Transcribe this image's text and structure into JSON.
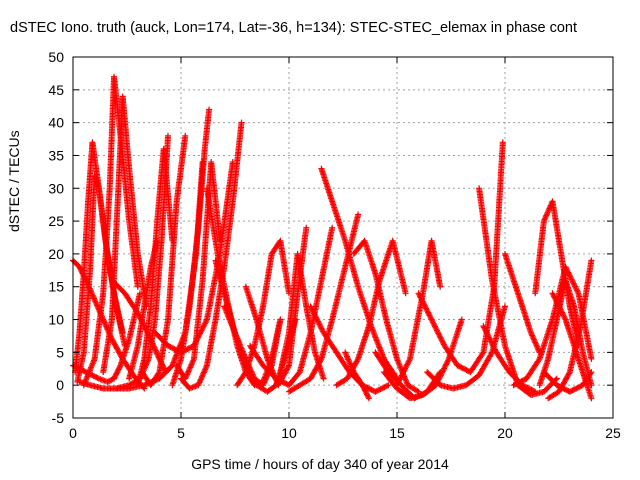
{
  "chart_data": {
    "type": "scatter",
    "title": "dSTEC Iono. truth (auck, Lon=174, Lat=-36, h=134): STEC-STEC_elemax in phase cont",
    "xlabel": "GPS time / hours of day 340 of year 2014",
    "ylabel": "dSTEC  / TECUs",
    "xlim": [
      0,
      25
    ],
    "ylim": [
      -5,
      50
    ],
    "xticks": [
      0,
      5,
      10,
      15,
      20,
      25
    ],
    "yticks": [
      -5,
      0,
      5,
      10,
      15,
      20,
      25,
      30,
      35,
      40,
      45,
      50
    ],
    "grid": true,
    "marker": "+",
    "color": "#ff0000",
    "passes": [
      {
        "x": [
          0.0,
          0.3,
          0.6,
          1.0,
          1.4,
          1.8,
          2.3,
          2.8,
          3.3
        ],
        "y": [
          19,
          18,
          16,
          13,
          10,
          7,
          4,
          1.5,
          -0.5
        ]
      },
      {
        "x": [
          0.1,
          0.3,
          0.5,
          0.7,
          0.9,
          1.2,
          1.6,
          2.0,
          2.4
        ],
        "y": [
          2,
          8,
          17,
          28,
          37,
          30,
          20,
          12,
          6
        ]
      },
      {
        "x": [
          0.2,
          0.5,
          0.8,
          1.0,
          1.2,
          1.5,
          1.9,
          2.3
        ],
        "y": [
          0.5,
          5,
          18,
          32,
          30,
          22,
          14,
          8
        ]
      },
      {
        "x": [
          0.0,
          0.6,
          1.2,
          1.6,
          1.9,
          2.2,
          2.6,
          3.1
        ],
        "y": [
          3,
          2,
          1,
          0.5,
          1,
          3,
          7,
          14
        ]
      },
      {
        "x": [
          0.5,
          1.0,
          1.4,
          1.7,
          1.9,
          2.2,
          2.6,
          3.0
        ],
        "y": [
          0,
          4,
          14,
          30,
          47,
          38,
          25,
          15
        ]
      },
      {
        "x": [
          1.4,
          1.8,
          2.1,
          2.3,
          2.6,
          3.0,
          3.4
        ],
        "y": [
          2,
          10,
          30,
          44,
          33,
          20,
          12
        ]
      },
      {
        "x": [
          0.3,
          0.8,
          1.4,
          2.0,
          2.6,
          3.1,
          3.5,
          3.8,
          4.1,
          4.4
        ],
        "y": [
          0.5,
          0,
          -0.5,
          -0.5,
          0,
          1,
          4,
          10,
          22,
          38
        ]
      },
      {
        "x": [
          2.6,
          3.0,
          3.3,
          3.6,
          3.9
        ],
        "y": [
          1,
          6,
          12,
          18,
          22
        ]
      },
      {
        "x": [
          3.0,
          3.3,
          3.6,
          3.9,
          4.2,
          4.6
        ],
        "y": [
          0,
          4,
          12,
          25,
          36,
          22
        ]
      },
      {
        "x": [
          3.2,
          3.6,
          4.0,
          4.4,
          4.8,
          5.2
        ],
        "y": [
          2,
          0,
          2,
          10,
          28,
          38
        ]
      },
      {
        "x": [
          1.8,
          2.4,
          3.0,
          3.6,
          4.0,
          4.3
        ],
        "y": [
          16,
          14,
          11,
          7,
          4,
          2
        ]
      },
      {
        "x": [
          2.0,
          2.6,
          3.3,
          4.0,
          4.6,
          5.2,
          5.7,
          6.0
        ],
        "y": [
          -0.5,
          -0.5,
          0,
          1,
          3,
          8,
          20,
          34
        ]
      },
      {
        "x": [
          4.6,
          5.0,
          5.4,
          5.8,
          6.1,
          6.3
        ],
        "y": [
          0,
          4,
          12,
          24,
          36,
          42
        ]
      },
      {
        "x": [
          4.8,
          5.2,
          5.6,
          6.0,
          6.4,
          6.8
        ],
        "y": [
          3,
          1,
          4,
          16,
          34,
          22
        ]
      },
      {
        "x": [
          5.0,
          5.4,
          5.8,
          6.2,
          6.6,
          7.0,
          7.4,
          7.8
        ],
        "y": [
          1,
          -0.5,
          0,
          3,
          10,
          18,
          28,
          40
        ]
      },
      {
        "x": [
          3.8,
          4.4,
          5.0,
          5.6,
          6.2,
          6.8,
          7.4
        ],
        "y": [
          8,
          6,
          5,
          6,
          10,
          20,
          34
        ]
      },
      {
        "x": [
          6.2,
          6.7,
          7.2,
          7.6,
          8.0,
          8.4,
          8.8,
          9.2,
          9.6
        ],
        "y": [
          30,
          20,
          12,
          6,
          2,
          0,
          0.5,
          4,
          10
        ]
      },
      {
        "x": [
          6.6,
          7.0,
          7.5,
          8.0,
          8.5,
          9.0,
          9.4,
          9.8,
          10.3
        ],
        "y": [
          19,
          14,
          8,
          3,
          0,
          -1,
          0,
          4,
          10
        ]
      },
      {
        "x": [
          7.0,
          7.5,
          8.0,
          8.4,
          8.8,
          9.2,
          9.6
        ],
        "y": [
          12,
          8,
          4,
          1,
          0,
          3,
          10
        ]
      },
      {
        "x": [
          7.6,
          8.0,
          8.4,
          8.8,
          9.2,
          9.6,
          10.0
        ],
        "y": [
          0,
          2,
          6,
          12,
          20,
          22,
          14
        ]
      },
      {
        "x": [
          8.0,
          8.5,
          9.0,
          9.5,
          10.0,
          10.4,
          10.8
        ],
        "y": [
          15,
          10,
          4,
          0,
          3,
          14,
          24
        ]
      },
      {
        "x": [
          8.2,
          8.8,
          9.4,
          10.0,
          10.5,
          11.0,
          11.5,
          12.0
        ],
        "y": [
          6,
          3,
          1,
          0,
          2,
          8,
          16,
          24
        ]
      },
      {
        "x": [
          9.6,
          10.0,
          10.4,
          10.8,
          11.2,
          11.6
        ],
        "y": [
          2,
          8,
          20,
          12,
          5,
          1
        ]
      },
      {
        "x": [
          10.0,
          10.5,
          11.0,
          11.5,
          12.0,
          12.6,
          13.2
        ],
        "y": [
          -1,
          0,
          1,
          4,
          10,
          18,
          26
        ]
      },
      {
        "x": [
          11.5,
          12.0,
          12.6,
          13.2,
          13.8,
          14.4,
          15.0
        ],
        "y": [
          33,
          28,
          22,
          15,
          9,
          4,
          1
        ]
      },
      {
        "x": [
          11.0,
          11.6,
          12.2,
          12.8,
          13.4,
          14.0,
          14.6
        ],
        "y": [
          12,
          8,
          5,
          2,
          0,
          -1,
          0
        ]
      },
      {
        "x": [
          12.2,
          12.7,
          13.2,
          13.7,
          14.2,
          14.8,
          15.4
        ],
        "y": [
          0,
          1,
          4,
          9,
          16,
          22,
          14
        ]
      },
      {
        "x": [
          13.0,
          13.5,
          14.0,
          14.5,
          15.0,
          15.5,
          16.0
        ],
        "y": [
          20,
          22,
          17,
          10,
          4,
          0,
          -1
        ]
      },
      {
        "x": [
          12.6,
          13.0,
          13.4,
          13.7
        ],
        "y": [
          5,
          2,
          0,
          -2
        ]
      },
      {
        "x": [
          14.0,
          14.6,
          15.2,
          15.8,
          16.4,
          17.0
        ],
        "y": [
          5,
          2,
          0,
          -2,
          -1,
          2
        ]
      },
      {
        "x": [
          14.4,
          15.0,
          15.6,
          16.2,
          16.8,
          17.4,
          18.0
        ],
        "y": [
          2,
          -0.5,
          -2,
          -1.5,
          0,
          4,
          10
        ]
      },
      {
        "x": [
          15.0,
          15.6,
          16.2,
          16.6,
          17.0
        ],
        "y": [
          0,
          4,
          14,
          22,
          15
        ]
      },
      {
        "x": [
          16.0,
          16.6,
          17.2,
          17.8,
          18.4,
          19.0,
          19.5,
          19.9
        ],
        "y": [
          14,
          10,
          6,
          3,
          2,
          5,
          15,
          37
        ]
      },
      {
        "x": [
          16.4,
          17.0,
          17.6,
          18.2,
          18.8,
          19.4,
          20.0
        ],
        "y": [
          2,
          0,
          -0.5,
          0,
          1.5,
          5,
          12
        ]
      },
      {
        "x": [
          18.8,
          19.4,
          20.0,
          20.6,
          21.2,
          21.8,
          22.4
        ],
        "y": [
          30,
          16,
          6,
          0,
          -1.5,
          -1,
          1
        ]
      },
      {
        "x": [
          19.0,
          19.6,
          20.2,
          20.8,
          21.4
        ],
        "y": [
          9,
          5,
          2,
          0,
          -1
        ]
      },
      {
        "x": [
          20.0,
          20.4,
          20.8,
          21.2,
          21.6
        ],
        "y": [
          20,
          16,
          12,
          8,
          5
        ]
      },
      {
        "x": [
          20.4,
          21.0,
          21.6,
          22.2,
          22.8,
          23.4,
          24.0
        ],
        "y": [
          0,
          1,
          4,
          10,
          18,
          14,
          4
        ]
      },
      {
        "x": [
          21.4,
          21.8,
          22.2,
          22.6,
          23.0,
          23.4
        ],
        "y": [
          14,
          25,
          28,
          20,
          12,
          6
        ]
      },
      {
        "x": [
          21.6,
          22.0,
          22.4,
          22.8,
          23.2,
          23.6,
          24.0
        ],
        "y": [
          0,
          4,
          10,
          16,
          12,
          5,
          0
        ]
      },
      {
        "x": [
          22.0,
          22.5,
          23.0,
          23.5,
          24.0
        ],
        "y": [
          -2,
          -1,
          2,
          9,
          19
        ]
      },
      {
        "x": [
          21.8,
          22.4,
          23.0,
          23.6,
          24.0
        ],
        "y": [
          2,
          0,
          -1,
          0,
          2
        ]
      },
      {
        "x": [
          22.2,
          22.8,
          23.4,
          24.0
        ],
        "y": [
          14,
          10,
          4,
          -2
        ]
      }
    ]
  }
}
